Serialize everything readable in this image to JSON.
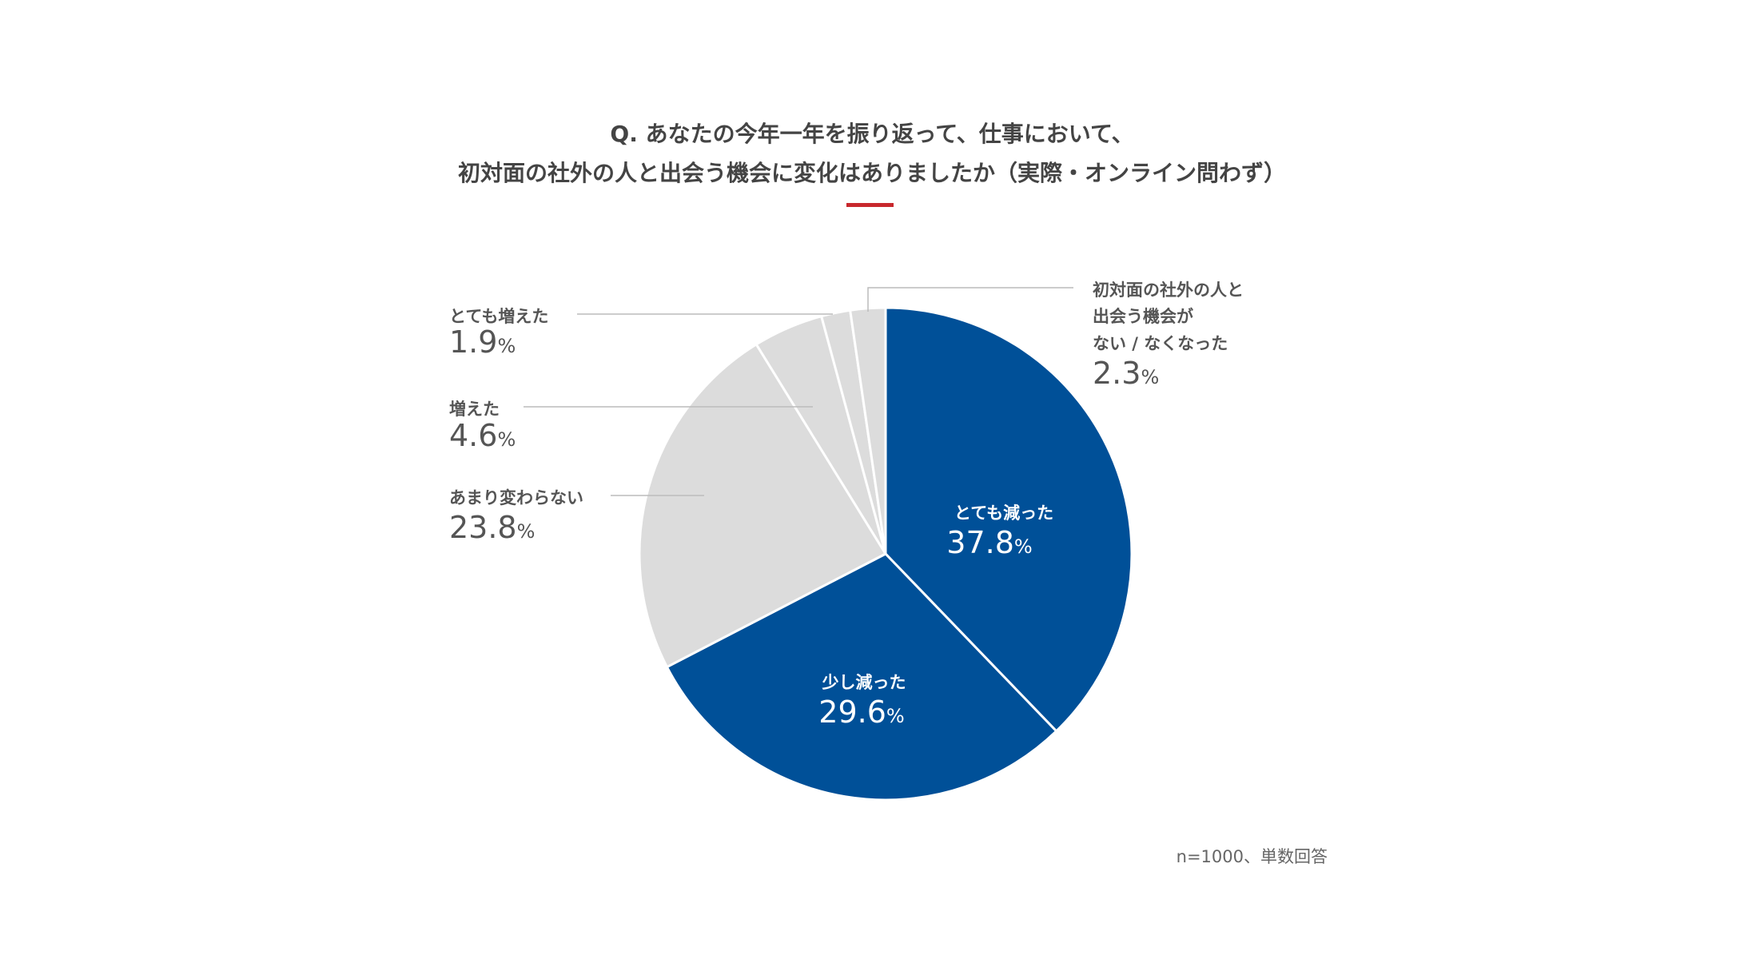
{
  "chart_data": {
    "type": "pie",
    "title_lines": [
      "Q. あなたの今年一年を振り返って、仕事において、",
      "初対面の社外の人と出会う機会に変化はありましたか（実際・オンライン問わず）"
    ],
    "slices": [
      {
        "label": "とても減った",
        "value": 37.8,
        "color": "#005098"
      },
      {
        "label": "少し減った",
        "value": 29.6,
        "color": "#005098"
      },
      {
        "label": "あまり変わらない",
        "value": 23.8,
        "color": "#dcdcdc"
      },
      {
        "label": "増えた",
        "value": 4.6,
        "color": "#dcdcdc"
      },
      {
        "label": "とても増えた",
        "value": 1.9,
        "color": "#dcdcdc"
      },
      {
        "label_lines": [
          "初対面の社外の人と",
          "出会う機会が",
          "ない / なくなった"
        ],
        "value": 2.3,
        "color": "#dcdcdc"
      }
    ],
    "value_texts": [
      "37.8",
      "29.6",
      "23.8",
      "4.6",
      "1.9",
      "2.3"
    ],
    "unit": "%",
    "note": "n=1000、単数回答",
    "accent_color": "#c8282d"
  }
}
